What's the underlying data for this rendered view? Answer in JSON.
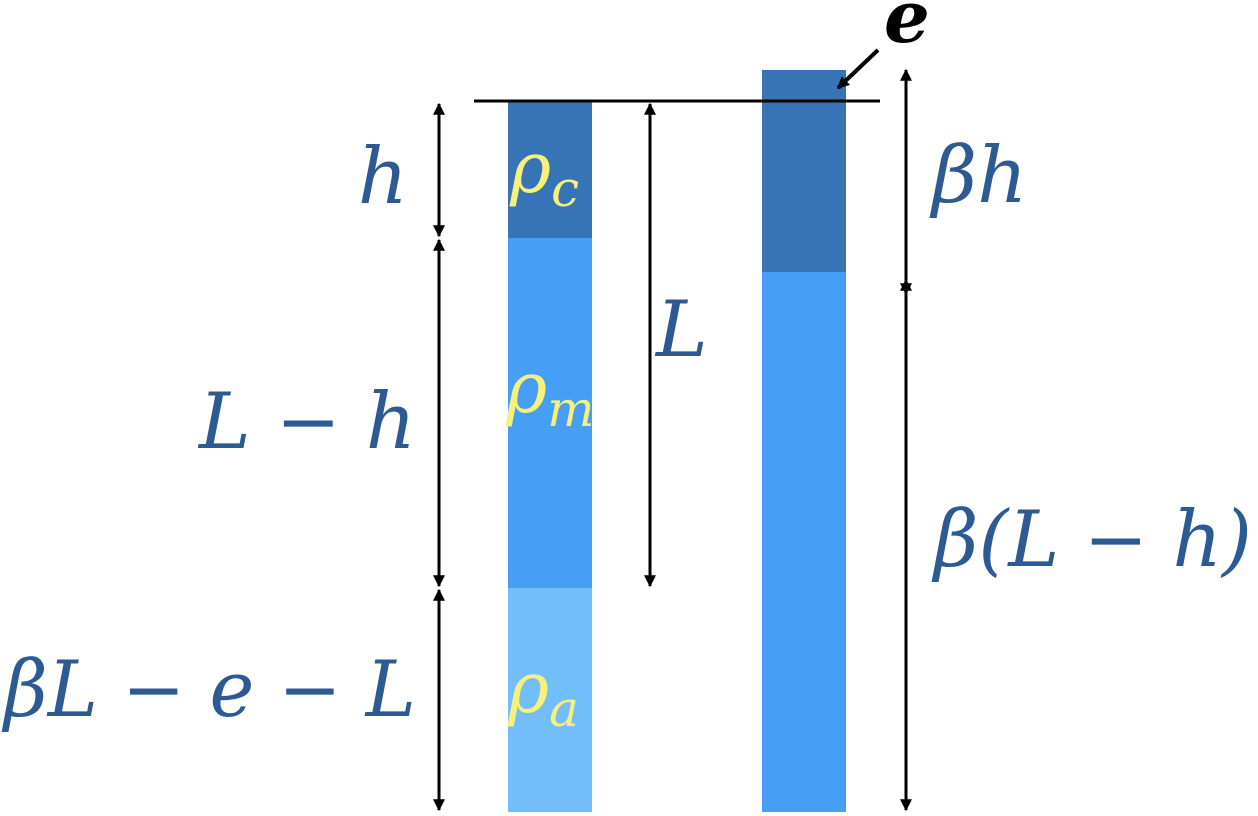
{
  "colors": {
    "crust": "#3674b5",
    "mantle": "#479ef5",
    "asthenosphere": "#72befa",
    "label_blue": "#2e5a94",
    "density_label": "#f7f07a",
    "line": "#000000"
  },
  "labels": {
    "h": "h",
    "L_minus_h": "L − h",
    "beta_L_minus_e_minus_L": "βL − e − L",
    "L": "L",
    "beta_h": "βh",
    "beta_L_minus_h": "β(L − h)",
    "e": "e"
  },
  "densities": {
    "crust": "ρ",
    "crust_sub": "c",
    "mantle": "ρ",
    "mantle_sub": "m",
    "asthenosphere": "ρ",
    "asthenosphere_sub": "a"
  }
}
